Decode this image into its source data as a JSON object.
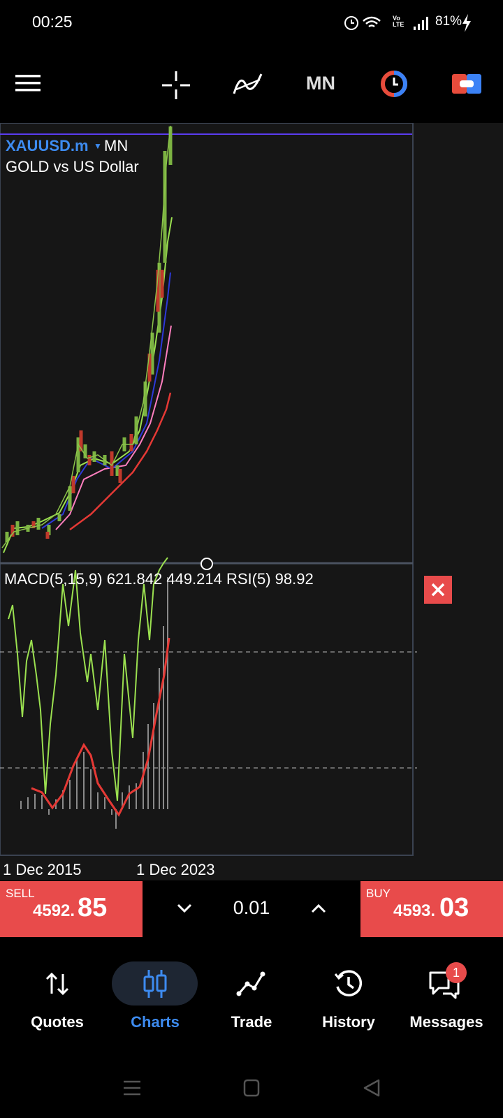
{
  "status_bar": {
    "time": "00:25",
    "network": "Vo LTE",
    "battery": "81%"
  },
  "toolbar": {
    "timeframe": "MN"
  },
  "chart": {
    "symbol": "XAUUSD.m",
    "timeframe": "MN",
    "description": "GOLD vs US Dollar",
    "indicator_label": "MACD(5,15,9) 621.842 449.214 RSI(5) 98.92",
    "x_labels": [
      "1 Dec 2015",
      "1 Dec 2023"
    ]
  },
  "trade_panel": {
    "sell_label": "SELL",
    "sell_price_main": "4592.",
    "sell_price_big": "85",
    "volume": "0.01",
    "buy_label": "BUY",
    "buy_price_main": "4593.",
    "buy_price_big": "03"
  },
  "nav": {
    "items": [
      "Quotes",
      "Charts",
      "Trade",
      "History",
      "Messages"
    ],
    "messages_badge": "1"
  }
}
